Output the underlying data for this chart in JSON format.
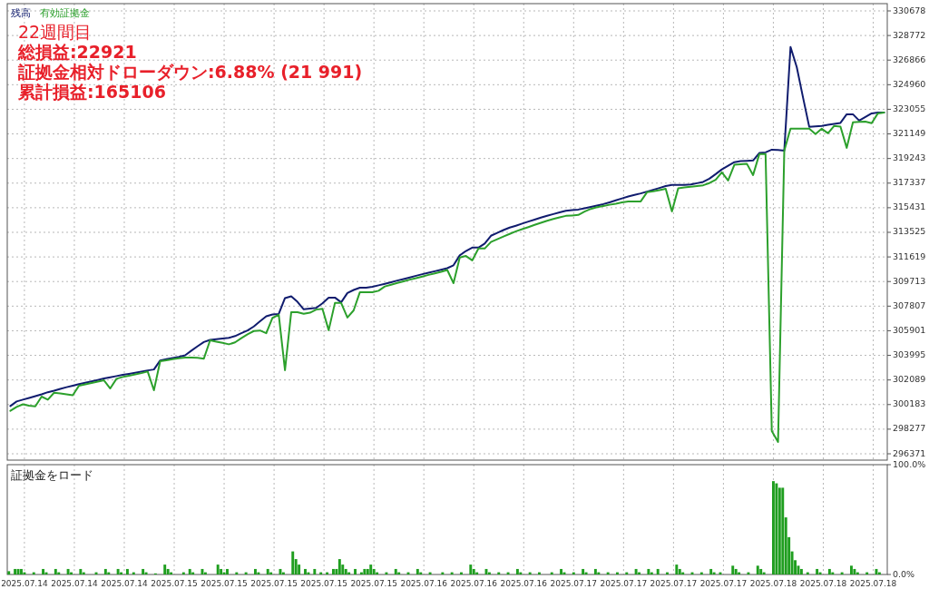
{
  "chart_data": [
    {
      "type": "line",
      "legend": "top left",
      "grid": true,
      "tick_labels": "y",
      "annotations": [
        "22週間目",
        "総損益:22921",
        "証拠金相対ドローダウン:6.88% (21 991)",
        "累計損益:165106"
      ],
      "categories": [
        null,
        null,
        null,
        null,
        null,
        null,
        null,
        null,
        null,
        null,
        null,
        null,
        null,
        null,
        null,
        null,
        null,
        null,
        null,
        null,
        null,
        null,
        null,
        null,
        null,
        null,
        null,
        null,
        null,
        null,
        null,
        null,
        null,
        null,
        null,
        null,
        null,
        null,
        null,
        null,
        null,
        null,
        null,
        null,
        null,
        null,
        null,
        null,
        null,
        null,
        null,
        null,
        null,
        null,
        null,
        null,
        null,
        null,
        null,
        null,
        null,
        null,
        null,
        null,
        null,
        null,
        null,
        null,
        null,
        null,
        null,
        null,
        null,
        null,
        null,
        null,
        null,
        null,
        null,
        null,
        null,
        null,
        null,
        null,
        null,
        null,
        null,
        null,
        null,
        null,
        null,
        null,
        null,
        null,
        null,
        null,
        null,
        null,
        null,
        null,
        null,
        null,
        null,
        null,
        null,
        null,
        null,
        null,
        null,
        null,
        null,
        null,
        null,
        null,
        null,
        null,
        null,
        null,
        null,
        null,
        null,
        null,
        null,
        null,
        null,
        null,
        null,
        null,
        null,
        null,
        null,
        null,
        null,
        null,
        null,
        null,
        null,
        null,
        null,
        null,
        null
      ],
      "ylim": [
        296371,
        330678
      ],
      "yticks": [
        296371,
        298277,
        300183,
        302089,
        303995,
        305901,
        307807,
        309713,
        311619,
        313525,
        315431,
        317337,
        319243,
        321149,
        323055,
        324960,
        326866,
        328772,
        330678
      ],
      "series": [
        {
          "name": "残高",
          "color": "#101c6e",
          "values": [
            300070,
            300420,
            300560,
            300700,
            300840,
            300980,
            301140,
            301260,
            301400,
            301530,
            301650,
            301770,
            301870,
            301980,
            302090,
            302200,
            302300,
            302390,
            302480,
            302560,
            302650,
            302740,
            302830,
            302900,
            303600,
            303700,
            303790,
            303880,
            304000,
            304360,
            304700,
            305030,
            305190,
            305240,
            305300,
            305350,
            305490,
            305710,
            305920,
            306230,
            306630,
            307020,
            307160,
            307200,
            308430,
            308570,
            308140,
            307560,
            307620,
            307670,
            308020,
            308470,
            308470,
            308100,
            308820,
            309060,
            309240,
            309240,
            309300,
            309420,
            309540,
            309660,
            309790,
            309910,
            310030,
            310160,
            310280,
            310390,
            310510,
            310630,
            310750,
            310970,
            311740,
            312080,
            312340,
            312340,
            312650,
            313260,
            313480,
            313700,
            313890,
            314040,
            314200,
            314360,
            314510,
            314670,
            314810,
            314940,
            315070,
            315200,
            315250,
            315290,
            315390,
            315490,
            315600,
            315710,
            315850,
            316000,
            316150,
            316300,
            316420,
            316540,
            316680,
            316820,
            316960,
            317110,
            317190,
            317190,
            317190,
            317230,
            317330,
            317430,
            317680,
            318030,
            318400,
            318680,
            318960,
            319040,
            319060,
            319090,
            319670,
            319720,
            319930,
            319900,
            319860,
            327880,
            326320,
            323970,
            321690,
            321730,
            321770,
            321850,
            321920,
            322000,
            322670,
            322670,
            322180,
            322460,
            322740,
            322810,
            322810
          ]
        },
        {
          "name": "有効証拠金",
          "color": "#2ca02c",
          "values": [
            299700,
            300000,
            300200,
            300100,
            300050,
            300800,
            300560,
            301100,
            301050,
            300980,
            300900,
            301650,
            301750,
            301850,
            301960,
            302060,
            301430,
            302180,
            302320,
            302410,
            302520,
            302620,
            302740,
            301290,
            303540,
            303620,
            303700,
            303770,
            303830,
            303830,
            303810,
            303740,
            305160,
            305060,
            304960,
            304850,
            305000,
            305330,
            305630,
            305880,
            305920,
            305710,
            306900,
            307140,
            302840,
            307340,
            307340,
            307220,
            307300,
            307540,
            307600,
            305940,
            308050,
            308050,
            306920,
            307480,
            308890,
            308890,
            308890,
            309000,
            309330,
            309470,
            309600,
            309730,
            309860,
            309980,
            310100,
            310230,
            310350,
            310470,
            310610,
            309590,
            311580,
            311690,
            311350,
            312270,
            312270,
            312780,
            312990,
            313200,
            313400,
            313600,
            313770,
            313930,
            314100,
            314260,
            314420,
            314560,
            314690,
            314800,
            314830,
            314870,
            315130,
            315340,
            315470,
            315560,
            315660,
            315740,
            315840,
            315920,
            315920,
            315920,
            316630,
            316700,
            316800,
            316900,
            315150,
            316930,
            317000,
            317050,
            317110,
            317170,
            317340,
            317600,
            318170,
            317540,
            318760,
            318800,
            318840,
            317960,
            319580,
            319580,
            298130,
            297290,
            319860,
            321550,
            321550,
            321550,
            321550,
            321130,
            321550,
            321200,
            321770,
            321720,
            320070,
            322050,
            322090,
            322100,
            321980,
            322740,
            322810
          ]
        }
      ]
    },
    {
      "type": "bar",
      "title": "証拠金をロード",
      "grid": "x",
      "categories": [
        null,
        null,
        null,
        null,
        null,
        "2025.07.14",
        null,
        null,
        null,
        null,
        null,
        null,
        null,
        null,
        null,
        null,
        null,
        null,
        null,
        null,
        null,
        "2025.07.14",
        null,
        null,
        null,
        null,
        null,
        null,
        null,
        null,
        null,
        null,
        null,
        null,
        null,
        null,
        null,
        "2025.07.14",
        null,
        null,
        null,
        null,
        null,
        null,
        null,
        null,
        null,
        null,
        null,
        null,
        null,
        null,
        null,
        "2025.07.15",
        null,
        null,
        null,
        null,
        null,
        null,
        null,
        null,
        null,
        null,
        null,
        null,
        null,
        null,
        null,
        "2025.07.15",
        null,
        null,
        null,
        null,
        null,
        null,
        null,
        null,
        null,
        null,
        null,
        null,
        null,
        null,
        null,
        "2025.07.15",
        null,
        null,
        null,
        null,
        null,
        null,
        null,
        null,
        null,
        null,
        null,
        null,
        null,
        null,
        null,
        "2025.07.15",
        null,
        null,
        null,
        null,
        null,
        null,
        null,
        null,
        null,
        null,
        null,
        null,
        null,
        null,
        null,
        "2025.07.15",
        null,
        null,
        null,
        null,
        null,
        null,
        null,
        null,
        null,
        null,
        null,
        null,
        null,
        null,
        null,
        "2025.07.16",
        null,
        null,
        null,
        null,
        null,
        null,
        null,
        null,
        null,
        null,
        null,
        null,
        null,
        null,
        null,
        "2025.07.16",
        null,
        null,
        null,
        null,
        null,
        null,
        null,
        null,
        null,
        null,
        null,
        null,
        null,
        null,
        null,
        "2025.07.16",
        null,
        null,
        null,
        null,
        null,
        null,
        null,
        null,
        null,
        null,
        null,
        null,
        null,
        null,
        null,
        "2025.07.17",
        null,
        null,
        null,
        null,
        null,
        null,
        null,
        null,
        null,
        null,
        null,
        null,
        null,
        null,
        null,
        "2025.07.17",
        null,
        null,
        null,
        null,
        null,
        null,
        null,
        null,
        null,
        null,
        null,
        null,
        null,
        null,
        null,
        "2025.07.17",
        null,
        null,
        null,
        null,
        null,
        null,
        null,
        null,
        null,
        null,
        null,
        null,
        null,
        null,
        null,
        "2025.07.17",
        null,
        null,
        null,
        null,
        null,
        null,
        null,
        null,
        null,
        null,
        null,
        null,
        null,
        null,
        null,
        "2025.07.18",
        null,
        null,
        null,
        null,
        null,
        null,
        null,
        null,
        null,
        null,
        null,
        null,
        null,
        null,
        null,
        "2025.07.18",
        null,
        null,
        null,
        null,
        null,
        null,
        null,
        null,
        null,
        null,
        null,
        null,
        null,
        null,
        null,
        "2025.07.18",
        null,
        null,
        null,
        null
      ],
      "ylim": [
        0,
        100
      ],
      "yticks": [
        {
          "value": 0,
          "label": "0.0%"
        },
        {
          "value": 100,
          "label": "100.0%"
        }
      ],
      "series": [
        {
          "color": "#1f9e1f",
          "values": [
            3,
            null,
            5,
            5,
            5,
            2,
            null,
            null,
            2,
            null,
            null,
            5,
            2,
            null,
            null,
            5,
            2,
            null,
            null,
            5,
            2,
            null,
            null,
            5,
            2,
            null,
            null,
            null,
            2,
            null,
            null,
            5,
            2,
            null,
            null,
            5,
            2,
            null,
            5,
            null,
            2,
            null,
            null,
            5,
            2,
            null,
            null,
            1,
            null,
            null,
            9,
            5,
            2,
            null,
            null,
            null,
            2,
            null,
            5,
            2,
            null,
            null,
            5,
            2,
            null,
            null,
            null,
            9,
            5,
            2,
            5,
            null,
            null,
            2,
            null,
            null,
            2,
            null,
            null,
            5,
            2,
            null,
            null,
            5,
            2,
            null,
            null,
            5,
            2,
            null,
            null,
            21,
            14,
            9,
            null,
            5,
            2,
            null,
            5,
            null,
            2,
            null,
            2,
            null,
            5,
            5,
            14,
            9,
            5,
            2,
            null,
            5,
            null,
            2,
            5,
            5,
            9,
            5,
            2,
            null,
            null,
            2,
            null,
            null,
            5,
            2,
            null,
            null,
            2,
            null,
            null,
            5,
            2,
            null,
            null,
            2,
            null,
            null,
            null,
            2,
            null,
            null,
            2,
            null,
            null,
            2,
            null,
            null,
            9,
            5,
            2,
            null,
            null,
            5,
            2,
            null,
            null,
            2,
            null,
            null,
            2,
            null,
            null,
            5,
            2,
            null,
            null,
            2,
            null,
            null,
            2,
            null,
            null,
            null,
            2,
            null,
            null,
            5,
            2,
            null,
            null,
            2,
            null,
            null,
            5,
            2,
            null,
            null,
            5,
            2,
            null,
            null,
            2,
            null,
            null,
            2,
            null,
            null,
            2,
            null,
            null,
            5,
            2,
            null,
            null,
            5,
            2,
            null,
            5,
            null,
            null,
            2,
            null,
            null,
            9,
            5,
            2,
            null,
            null,
            2,
            null,
            null,
            2,
            null,
            null,
            5,
            2,
            null,
            2,
            null,
            null,
            null,
            8,
            5,
            2,
            null,
            null,
            2,
            null,
            null,
            8,
            5,
            2,
            null,
            null,
            85,
            83,
            79,
            79,
            52,
            34,
            21,
            13,
            8,
            5,
            null,
            2,
            null,
            null,
            5,
            2,
            null,
            null,
            5,
            2,
            null,
            null,
            2,
            null,
            null,
            8,
            5,
            2,
            null,
            null,
            2,
            null,
            null,
            5,
            2,
            null,
            null
          ]
        }
      ]
    }
  ]
}
